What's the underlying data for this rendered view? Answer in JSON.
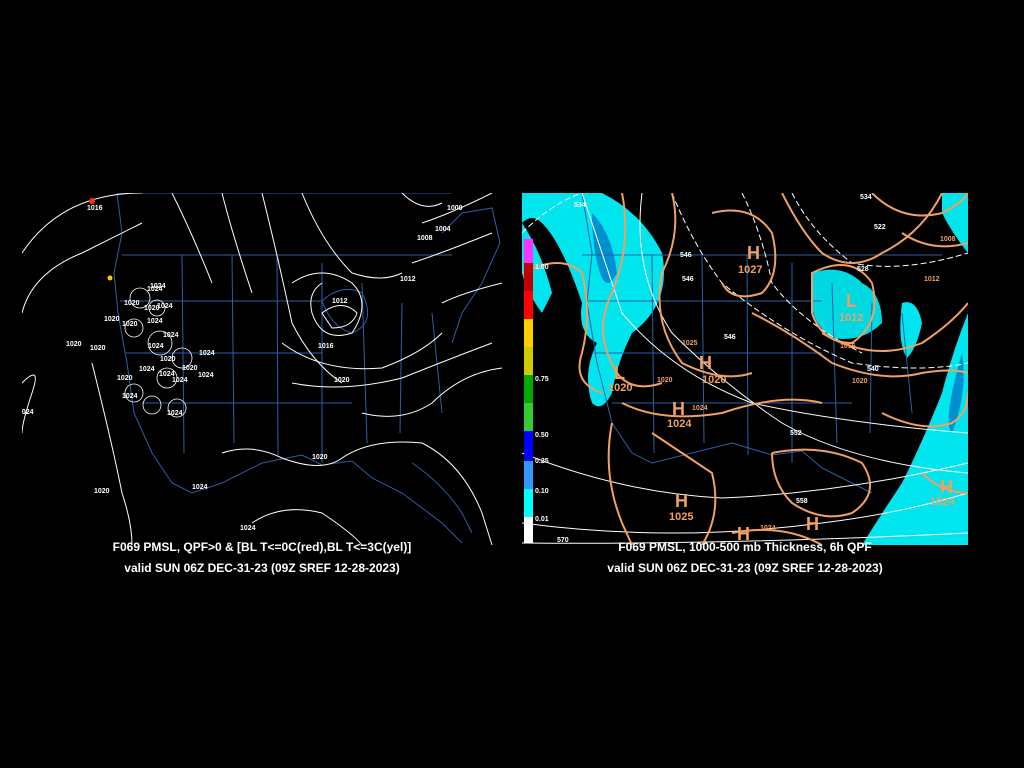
{
  "left_panel": {
    "caption_line1": "F069 PMSL, QPF>0 & [BL T<=0C(red),BL T<=3C(yel)]",
    "caption_line2": "valid SUN 06Z DEC-31-23 (09Z SREF 12-28-2023)",
    "isobar_labels": [
      "1016",
      "1000",
      "1004",
      "1008",
      "1012",
      "1012",
      "1016",
      "1020",
      "1024",
      "1020",
      "1024",
      "1024",
      "1020",
      "1020",
      "1020",
      "1024",
      "1020",
      "1024",
      "1024",
      "1024",
      "1020",
      "1024",
      "1024",
      "1020",
      "1024",
      "1020",
      "1020",
      "1024",
      "1024",
      "1024",
      "1024",
      "1024",
      "1020",
      "1024",
      "1020"
    ],
    "colors": {
      "isobar": "#ffffff",
      "coast": "#2b5fa8",
      "yellow_marker": "#ffcc00",
      "red_marker": "#ff3300"
    }
  },
  "right_panel": {
    "caption_line1": "F069 PMSL, 1000-500 mb Thickness, 6h QPF",
    "caption_line2": "valid SUN 06Z DEC-31-23 (09Z SREF 12-28-2023)",
    "qpf_scale": [
      "1.00",
      "0.75",
      "0.50",
      "0.25",
      "0.10",
      "0.01"
    ],
    "qpf_scale_colors": [
      "#ff33ff",
      "#c00000",
      "#ff0000",
      "#ffcc00",
      "#00aa00",
      "#0000ff",
      "#00ffff"
    ],
    "pressure_centers": [
      {
        "symbol": "H",
        "value": "1027"
      },
      {
        "symbol": "L",
        "value": "1012"
      },
      {
        "symbol": "H",
        "value": "1024"
      },
      {
        "symbol": "H",
        "value": "1025"
      },
      {
        "symbol": "H",
        "value": "1024"
      },
      {
        "symbol": "H",
        "value": ""
      },
      {
        "symbol": "H",
        "value": ""
      },
      {
        "symbol": "L",
        "value": "1020"
      },
      {
        "symbol": "H",
        "value": "1020"
      }
    ],
    "thickness_labels": [
      "534",
      "546",
      "546",
      "522",
      "528",
      "540",
      "546",
      "552",
      "558",
      "570",
      "534"
    ],
    "isobar_labels": [
      "1008",
      "1012",
      "1016",
      "1020",
      "1020",
      "1024",
      "1025",
      "1024"
    ],
    "colors": {
      "qpf": "#00e5ee",
      "isobar": "#f0a060",
      "thickness": "#ffffff",
      "coast": "#2b5fa8"
    }
  }
}
